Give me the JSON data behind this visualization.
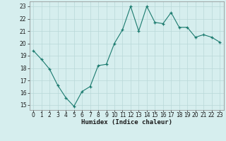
{
  "title": "",
  "xlabel": "Humidex (Indice chaleur)",
  "x_values": [
    0,
    1,
    2,
    3,
    4,
    5,
    6,
    7,
    8,
    9,
    10,
    11,
    12,
    13,
    14,
    15,
    16,
    17,
    18,
    19,
    20,
    21,
    22,
    23
  ],
  "y_values": [
    19.4,
    18.7,
    17.9,
    16.6,
    15.6,
    14.9,
    16.1,
    16.5,
    18.2,
    18.3,
    20.0,
    21.1,
    23.0,
    21.0,
    23.0,
    21.7,
    21.6,
    22.5,
    21.3,
    21.3,
    20.5,
    20.7,
    20.5,
    20.1
  ],
  "ylim": [
    14.6,
    23.4
  ],
  "xlim": [
    -0.5,
    23.5
  ],
  "yticks": [
    15,
    16,
    17,
    18,
    19,
    20,
    21,
    22,
    23
  ],
  "xticks": [
    0,
    1,
    2,
    3,
    4,
    5,
    6,
    7,
    8,
    9,
    10,
    11,
    12,
    13,
    14,
    15,
    16,
    17,
    18,
    19,
    20,
    21,
    22,
    23
  ],
  "line_color": "#1a7a6e",
  "marker": "+",
  "bg_color": "#d6eeee",
  "grid_color": "#b8d8d8",
  "tick_fontsize": 5.5,
  "label_fontsize": 6.5
}
